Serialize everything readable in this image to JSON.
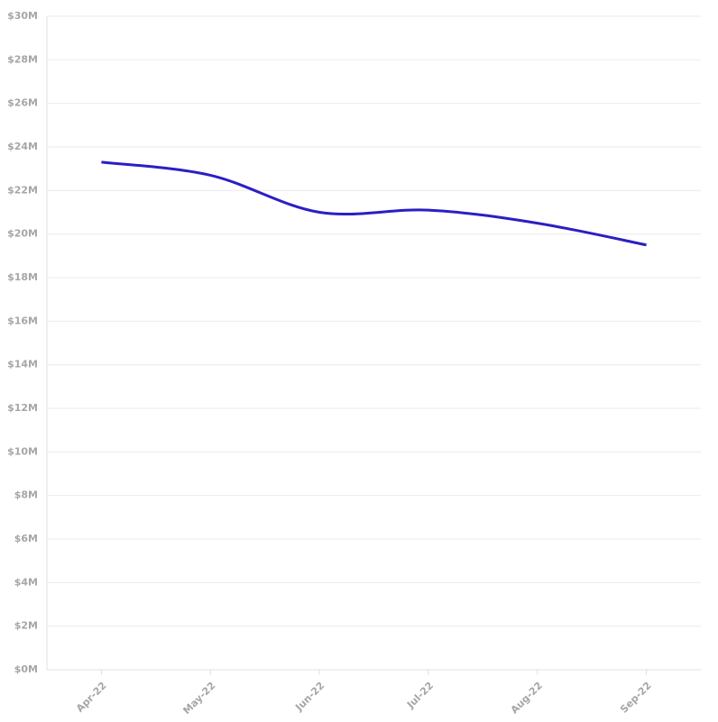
{
  "chart_data": {
    "type": "line",
    "categories": [
      "Apr-22",
      "May-22",
      "Jun-22",
      "Jul-22",
      "Aug-22",
      "Sep-22"
    ],
    "series": [
      {
        "color": "#2a1fc4",
        "values": [
          23.3,
          22.7,
          21.0,
          21.1,
          20.5,
          19.5
        ]
      }
    ],
    "ylim": [
      0,
      30
    ],
    "yticks": [
      {
        "value": 0,
        "label": "$0M"
      },
      {
        "value": 2,
        "label": "$2M"
      },
      {
        "value": 4,
        "label": "$4M"
      },
      {
        "value": 6,
        "label": "$6M"
      },
      {
        "value": 8,
        "label": "$8M"
      },
      {
        "value": 10,
        "label": "$10M"
      },
      {
        "value": 12,
        "label": "$12M"
      },
      {
        "value": 14,
        "label": "$14M"
      },
      {
        "value": 16,
        "label": "$16M"
      },
      {
        "value": 18,
        "label": "$18M"
      },
      {
        "value": 20,
        "label": "$20M"
      },
      {
        "value": 22,
        "label": "$22M"
      },
      {
        "value": 24,
        "label": "$24M"
      },
      {
        "value": 26,
        "label": "$26M"
      },
      {
        "value": 28,
        "label": "$28M"
      },
      {
        "value": 30,
        "label": "$30M"
      }
    ],
    "grid": true
  }
}
